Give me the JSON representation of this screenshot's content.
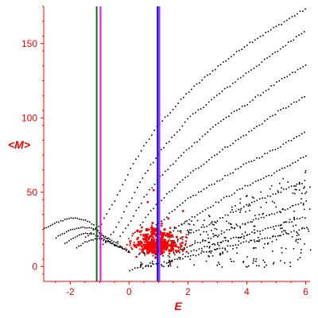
{
  "chart_data": {
    "type": "scatter",
    "title": "",
    "xlabel": "E",
    "ylabel": "<M>",
    "xlim": [
      -2.9,
      6.15
    ],
    "ylim": [
      -10,
      175
    ],
    "x_ticks": [
      -2,
      0,
      2,
      4,
      6
    ],
    "y_ticks": [
      0,
      50,
      100,
      150
    ],
    "colors": {
      "axis": "#ff0000",
      "black_points": "#000000",
      "red_points": "#ff0000",
      "vline_green": "#007700",
      "vline_magenta": "#ff00ff",
      "vline_blue": "#0000ff",
      "vline_purple": "#9b30ff"
    },
    "vertical_lines": [
      {
        "x": -1.1,
        "color": "#007700"
      },
      {
        "x": -0.97,
        "color": "#ff00ff"
      },
      {
        "x": 0.97,
        "color": "#0000ff"
      },
      {
        "x": 1.03,
        "color": "#9b30ff"
      }
    ],
    "bands": [
      {
        "x": [
          -1.5,
          -1.0,
          -0.5,
          0,
          0.5,
          1,
          2,
          3,
          4,
          5,
          6
        ],
        "y": [
          20,
          28,
          45,
          65,
          82,
          96,
          118,
          135,
          150,
          162,
          174
        ]
      },
      {
        "x": [
          -1.0,
          -0.5,
          0,
          0.5,
          1,
          2,
          3,
          4,
          5,
          6
        ],
        "y": [
          13,
          25,
          44,
          62,
          77,
          100,
          116,
          131,
          145,
          160
        ]
      },
      {
        "x": [
          -0.5,
          0,
          0.5,
          1,
          2,
          3,
          4,
          5,
          6
        ],
        "y": [
          15,
          30,
          47,
          60,
          80,
          97,
          110,
          124,
          136
        ]
      },
      {
        "x": [
          0,
          0.5,
          1,
          2,
          3,
          4,
          5,
          6
        ],
        "y": [
          18,
          32,
          44,
          62,
          77,
          90,
          104,
          115
        ]
      },
      {
        "x": [
          0,
          0.5,
          1,
          2,
          3,
          4,
          5,
          6
        ],
        "y": [
          10,
          20,
          30,
          46,
          58,
          70,
          80,
          92
        ]
      },
      {
        "x": [
          0.5,
          1,
          2,
          3,
          4,
          5,
          6
        ],
        "y": [
          10,
          18,
          32,
          44,
          55,
          64,
          75
        ]
      },
      {
        "x": [
          1,
          2,
          3,
          4,
          5,
          6
        ],
        "y": [
          10,
          22,
          32,
          42,
          50,
          58
        ]
      },
      {
        "x": [
          1.5,
          2,
          3,
          4,
          5,
          6
        ],
        "y": [
          10,
          14,
          22,
          30,
          37,
          44
        ]
      },
      {
        "x": [
          2,
          3,
          4,
          5,
          6
        ],
        "y": [
          10,
          16,
          22,
          28,
          34
        ]
      },
      {
        "x": [
          0,
          1,
          2,
          3,
          4,
          5,
          6
        ],
        "y": [
          -2,
          2,
          7,
          12,
          17,
          21,
          26
        ]
      }
    ],
    "left_arcs": [
      {
        "x": [
          -2.9,
          -2.5,
          -2.0,
          -1.5,
          -1.2,
          -1.0,
          -0.8,
          -0.5
        ],
        "y": [
          26,
          30,
          33,
          32,
          28,
          22,
          19,
          15
        ]
      },
      {
        "x": [
          -2.5,
          -2.0,
          -1.5,
          -1.2,
          -1.0,
          -0.8,
          -0.5,
          -0.2
        ],
        "y": [
          20,
          25,
          27,
          26,
          23,
          20,
          17,
          13
        ]
      },
      {
        "x": [
          -2.2,
          -1.8,
          -1.5,
          -1.2,
          -1.0,
          -0.7,
          -0.4,
          0.0
        ],
        "y": [
          16,
          21,
          23,
          22,
          20,
          17,
          14,
          11
        ]
      },
      {
        "x": [
          -1.8,
          -1.5,
          -1.2,
          -1.0,
          -0.7,
          -0.4,
          0.0
        ],
        "y": [
          13,
          17,
          19,
          19,
          17,
          14,
          10
        ]
      }
    ],
    "red_cluster": {
      "center": [
        1.0,
        15
      ],
      "spread": [
        0.45,
        7
      ],
      "count": 260,
      "outliers": [
        [
          0.8,
          52
        ],
        [
          1.3,
          33
        ],
        [
          1.8,
          38
        ],
        [
          0.4,
          27
        ],
        [
          0.6,
          44
        ]
      ]
    }
  }
}
